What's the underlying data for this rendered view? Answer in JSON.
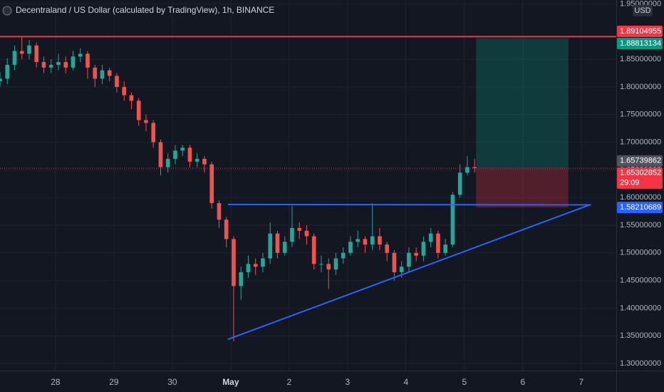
{
  "chart_data": {
    "type": "candlestick",
    "title": "Decentraland / US Dollar (calculated by TradingView), 1h, BINANCE",
    "currency": "USD",
    "background": "#131722",
    "grid": true,
    "grid_color": "#1f2330",
    "up_color": "#26a69a",
    "down_color": "#ef5350",
    "xlim": [
      27.05,
      37.6
    ],
    "xticks": [
      28,
      29,
      30,
      {
        "value": 31,
        "label": "May"
      },
      {
        "value": 32,
        "label": "2"
      },
      {
        "value": 33,
        "label": "3"
      },
      {
        "value": 34,
        "label": "4"
      },
      {
        "value": 35,
        "label": "5"
      },
      {
        "value": 36,
        "label": "6"
      },
      {
        "value": 37,
        "label": "7"
      }
    ],
    "ylim": [
      1.2871,
      1.9572
    ],
    "yticks": [
      {
        "value": 1.3,
        "label": "1.30000000"
      },
      {
        "value": 1.35,
        "label": "1.35000000"
      },
      {
        "value": 1.4,
        "label": "1.40000000"
      },
      {
        "value": 1.45,
        "label": "1.45000000"
      },
      {
        "value": 1.5,
        "label": "1.50000000"
      },
      {
        "value": 1.55,
        "label": "1.55000000"
      },
      {
        "value": 1.6,
        "label": "1.60000000"
      },
      {
        "value": 1.65,
        "label": "1.65000000"
      },
      {
        "value": 1.7,
        "label": "1.70000000"
      },
      {
        "value": 1.75,
        "label": "1.75000000"
      },
      {
        "value": 1.8,
        "label": "1.80000000"
      },
      {
        "value": 1.85,
        "label": "1.85000000"
      },
      {
        "value": 1.95,
        "label": "1.95000000"
      }
    ],
    "x": [
      27.05,
      27.175,
      27.3,
      27.425,
      27.55,
      27.675,
      27.8,
      27.925,
      28.05,
      28.175,
      28.3,
      28.425,
      28.55,
      28.675,
      28.8,
      28.925,
      29.05,
      29.175,
      29.3,
      29.425,
      29.55,
      29.675,
      29.8,
      29.925,
      30.05,
      30.175,
      30.3,
      30.425,
      30.55,
      30.675,
      30.8,
      30.925,
      31.05,
      31.175,
      31.3,
      31.425,
      31.55,
      31.675,
      31.8,
      31.925,
      32.05,
      32.175,
      32.3,
      32.425,
      32.55,
      32.675,
      32.8,
      32.925,
      33.05,
      33.175,
      33.3,
      33.425,
      33.55,
      33.675,
      33.8,
      33.925,
      34.05,
      34.175,
      34.3,
      34.425,
      34.55,
      34.675,
      34.8,
      34.925,
      35.05,
      35.175
    ],
    "open": [
      1.81,
      1.815,
      1.84,
      1.865,
      1.86,
      1.875,
      1.845,
      1.835,
      1.84,
      1.845,
      1.835,
      1.855,
      1.86,
      1.835,
      1.815,
      1.83,
      1.82,
      1.8,
      1.785,
      1.775,
      1.74,
      1.735,
      1.7,
      1.655,
      1.67,
      1.685,
      1.69,
      1.665,
      1.67,
      1.66,
      1.59,
      1.56,
      1.525,
      1.44,
      1.465,
      1.48,
      1.475,
      1.49,
      1.535,
      1.5,
      1.52,
      1.545,
      1.54,
      1.53,
      1.48,
      1.48,
      1.47,
      1.49,
      1.5,
      1.52,
      1.525,
      1.515,
      1.53,
      1.515,
      1.5,
      1.465,
      1.475,
      1.5,
      1.495,
      1.52,
      1.535,
      1.5,
      1.515,
      1.605,
      1.645,
      1.655
    ],
    "high": [
      1.827,
      1.852,
      1.875,
      1.89,
      1.885,
      1.88,
      1.855,
      1.85,
      1.86,
      1.855,
      1.865,
      1.87,
      1.865,
      1.84,
      1.84,
      1.835,
      1.825,
      1.81,
      1.79,
      1.78,
      1.75,
      1.74,
      1.705,
      1.68,
      1.695,
      1.695,
      1.695,
      1.68,
      1.675,
      1.665,
      1.595,
      1.565,
      1.53,
      1.475,
      1.495,
      1.49,
      1.5,
      1.555,
      1.54,
      1.53,
      1.585,
      1.555,
      1.55,
      1.535,
      1.495,
      1.49,
      1.5,
      1.51,
      1.53,
      1.54,
      1.53,
      1.59,
      1.545,
      1.52,
      1.505,
      1.485,
      1.51,
      1.51,
      1.53,
      1.545,
      1.54,
      1.525,
      1.61,
      1.66,
      1.675,
      1.67
    ],
    "low": [
      1.8,
      1.805,
      1.83,
      1.85,
      1.85,
      1.835,
      1.825,
      1.825,
      1.83,
      1.825,
      1.83,
      1.845,
      1.815,
      1.8,
      1.805,
      1.81,
      1.79,
      1.775,
      1.76,
      1.73,
      1.72,
      1.69,
      1.64,
      1.645,
      1.66,
      1.675,
      1.655,
      1.655,
      1.645,
      1.58,
      1.545,
      1.51,
      1.34,
      1.415,
      1.455,
      1.46,
      1.465,
      1.48,
      1.49,
      1.495,
      1.51,
      1.525,
      1.515,
      1.47,
      1.465,
      1.435,
      1.46,
      1.48,
      1.495,
      1.51,
      1.5,
      1.505,
      1.505,
      1.485,
      1.45,
      1.455,
      1.465,
      1.485,
      1.485,
      1.51,
      1.49,
      1.495,
      1.51,
      1.6,
      1.64,
      1.645
    ],
    "close": [
      1.815,
      1.84,
      1.865,
      1.86,
      1.875,
      1.845,
      1.835,
      1.84,
      1.845,
      1.835,
      1.855,
      1.86,
      1.835,
      1.815,
      1.83,
      1.82,
      1.8,
      1.785,
      1.775,
      1.74,
      1.735,
      1.7,
      1.655,
      1.67,
      1.685,
      1.69,
      1.665,
      1.67,
      1.66,
      1.59,
      1.56,
      1.525,
      1.44,
      1.465,
      1.48,
      1.475,
      1.49,
      1.535,
      1.5,
      1.52,
      1.545,
      1.54,
      1.53,
      1.48,
      1.48,
      1.47,
      1.49,
      1.5,
      1.52,
      1.525,
      1.515,
      1.53,
      1.515,
      1.5,
      1.465,
      1.475,
      1.5,
      1.495,
      1.52,
      1.535,
      1.5,
      1.515,
      1.605,
      1.645,
      1.655,
      1.653
    ],
    "hline": {
      "value": 1.89104955,
      "color": "#f23645"
    },
    "lines": [
      {
        "color": "#2962ff",
        "x": [
          30.95,
          37.17
        ],
        "y": [
          1.5875,
          1.5868
        ]
      },
      {
        "color": "#2962ff",
        "x": [
          30.95,
          37.15
        ],
        "y": [
          1.3435,
          1.587
        ]
      }
    ],
    "position": {
      "x_start": 35.2,
      "x_end": 36.78,
      "target": 1.88813134,
      "stop": 1.58210689,
      "profit_color": "rgba(8,153,129,0.28)",
      "loss_color": "rgba(242,54,69,0.28)",
      "target_color": "#089981",
      "stop_color": "#2962ff"
    },
    "price_labels": [
      {
        "value": 1.65739862,
        "color": "#50535e"
      }
    ],
    "last_price": {
      "value": 1.65302852,
      "countdown": "29:09",
      "color": "#f23645"
    }
  }
}
